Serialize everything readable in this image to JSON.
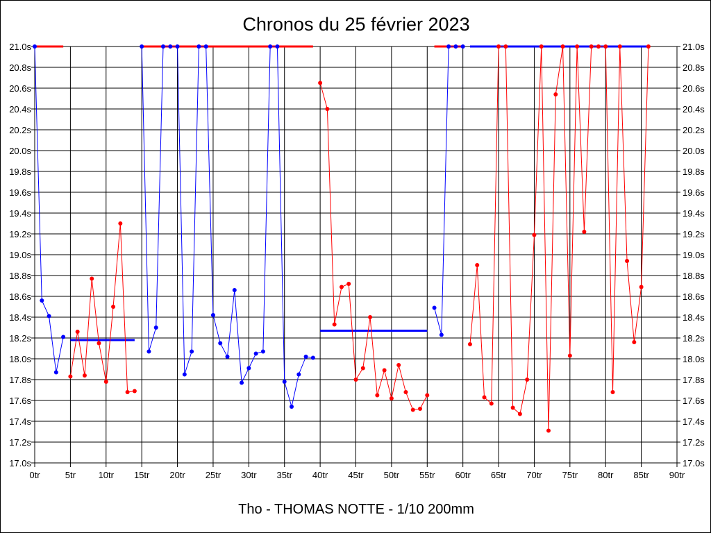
{
  "chart_data": {
    "type": "line",
    "title": "Chronos du 25 février 2023",
    "subtitle": "Tho - THOMAS NOTTE - 1/10 200mm",
    "xlim": [
      0,
      90
    ],
    "ylim": [
      17.0,
      21.0
    ],
    "x_ticks": [
      0,
      5,
      10,
      15,
      20,
      25,
      30,
      35,
      40,
      45,
      50,
      55,
      60,
      65,
      70,
      75,
      80,
      85,
      90
    ],
    "x_tick_labels": [
      "0tr",
      "5tr",
      "10tr",
      "15tr",
      "20tr",
      "25tr",
      "30tr",
      "35tr",
      "40tr",
      "45tr",
      "50tr",
      "55tr",
      "60tr",
      "65tr",
      "70tr",
      "75tr",
      "80tr",
      "85tr",
      "90tr"
    ],
    "y_ticks": [
      17.0,
      17.2,
      17.4,
      17.6,
      17.8,
      18.0,
      18.2,
      18.4,
      18.6,
      18.8,
      19.0,
      19.2,
      19.4,
      19.6,
      19.8,
      20.0,
      20.2,
      20.4,
      20.6,
      20.8,
      21.0
    ],
    "y_tick_labels": [
      "17.0s",
      "17.2s",
      "17.4s",
      "17.6s",
      "17.8s",
      "18.0s",
      "18.2s",
      "18.4s",
      "18.6s",
      "18.8s",
      "19.0s",
      "19.2s",
      "19.4s",
      "19.6s",
      "19.8s",
      "20.0s",
      "20.2s",
      "20.4s",
      "20.6s",
      "20.8s",
      "21.0s"
    ],
    "grid": true,
    "y_axis_labels_both_sides": true,
    "colors": {
      "blue": "#0000ff",
      "red": "#ff0000",
      "grid": "#000000"
    },
    "series": [
      {
        "color": "blue",
        "x": [
          0,
          1,
          2,
          3,
          4
        ],
        "y": [
          21.0,
          18.56,
          18.41,
          17.87,
          18.21
        ]
      },
      {
        "color": "red",
        "x": [
          5,
          6,
          7,
          8,
          9,
          10,
          11,
          12,
          13,
          14
        ],
        "y": [
          17.83,
          18.26,
          17.84,
          18.77,
          18.15,
          17.78,
          18.5,
          19.3,
          17.68,
          17.69
        ]
      },
      {
        "color": "blue",
        "x": [
          15,
          16,
          17,
          18,
          19,
          20,
          21,
          22,
          23,
          24,
          25,
          26,
          27,
          28,
          29,
          30,
          31,
          32,
          33,
          34,
          35,
          36,
          37,
          38,
          39
        ],
        "y": [
          21.0,
          18.07,
          18.3,
          21.0,
          21.0,
          21.0,
          17.85,
          18.07,
          21.0,
          21.0,
          18.42,
          18.15,
          18.02,
          18.66,
          17.77,
          17.91,
          18.05,
          18.07,
          21.0,
          21.0,
          17.78,
          17.54,
          17.85,
          18.02,
          18.01
        ]
      },
      {
        "color": "red",
        "x": [
          40,
          41,
          42,
          43,
          44,
          45,
          46,
          47,
          48,
          49,
          50,
          51,
          52,
          53,
          54,
          55
        ],
        "y": [
          20.65,
          20.4,
          18.33,
          18.69,
          18.72,
          17.8,
          17.91,
          18.4,
          17.65,
          17.89,
          17.62,
          17.94,
          17.68,
          17.51,
          17.52,
          17.65
        ]
      },
      {
        "color": "blue",
        "x": [
          56,
          57,
          58,
          59,
          60
        ],
        "y": [
          18.49,
          18.23,
          21.0,
          21.0,
          21.0
        ]
      },
      {
        "color": "red",
        "x": [
          61,
          62,
          63,
          64,
          65,
          66,
          67,
          68,
          69,
          70,
          71,
          72,
          73,
          74,
          75,
          76,
          77,
          78,
          79,
          80,
          81,
          82,
          83,
          84,
          85,
          86
        ],
        "y": [
          18.14,
          18.9,
          17.63,
          17.57,
          21.0,
          21.0,
          17.53,
          17.47,
          17.8,
          19.19,
          21.0,
          17.31,
          20.54,
          21.0,
          18.03,
          21.0,
          19.22,
          21.0,
          21.0,
          21.0,
          17.68,
          21.0,
          18.94,
          18.16,
          18.69,
          21.0
        ]
      }
    ],
    "average_lines": [
      {
        "color": "red",
        "x": [
          0,
          4
        ],
        "y": 21.0
      },
      {
        "color": "blue",
        "x": [
          5,
          14
        ],
        "y": 18.18
      },
      {
        "color": "red",
        "x": [
          15,
          39
        ],
        "y": 21.0
      },
      {
        "color": "blue",
        "x": [
          40,
          55
        ],
        "y": 18.27
      },
      {
        "color": "red",
        "x": [
          56,
          60
        ],
        "y": 21.0
      },
      {
        "color": "blue",
        "x": [
          61,
          86
        ],
        "y": 21.0
      }
    ]
  }
}
